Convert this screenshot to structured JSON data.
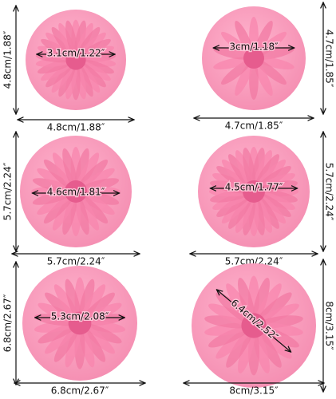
{
  "molds": [
    {
      "inner": "3.1cm/1.22″",
      "height": "4.8cm/1.88″",
      "width": "4.8cm/1.88″"
    },
    {
      "inner": "3cm/1.18″",
      "height": "4.7cm/1.85″",
      "width": "4.7cm/1.85″"
    },
    {
      "inner": "4.6cm/1.81″",
      "height": "5.7cm/2.24″",
      "width": "5.7cm/2.24″"
    },
    {
      "inner": "4.5cm/1.77″",
      "height": "5.7cm/2.24″",
      "width": "5.7cm/2.24″"
    },
    {
      "inner": "5.3cm/2.08″",
      "height": "6.8cm/2.67″",
      "width": "6.8cm/2.67″"
    },
    {
      "inner": "6.4cm/2.52″",
      "height": "8cm/3.15″",
      "width": "8cm/3.15″"
    }
  ]
}
